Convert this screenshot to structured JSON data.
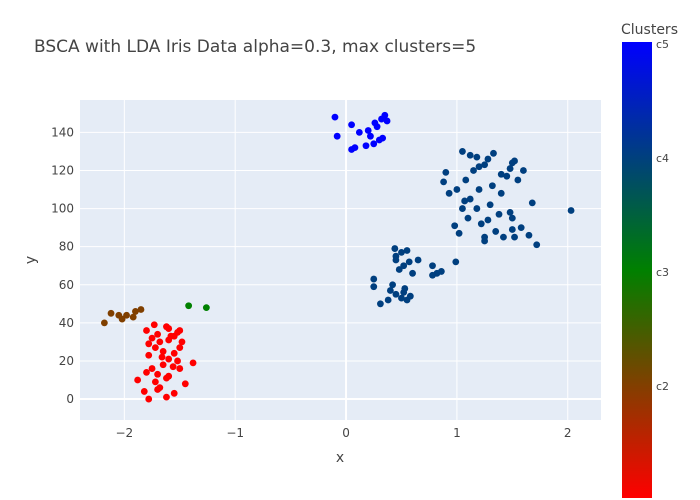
{
  "chart_data": {
    "type": "scatter",
    "title": "BSCA with LDA Iris Data alpha=0.3, max clusters=5",
    "xlabel": "x",
    "ylabel": "y",
    "xlim": [
      -2.4,
      2.3
    ],
    "ylim": [
      -11,
      157
    ],
    "x_ticks": [
      -2,
      -1,
      0,
      1,
      2
    ],
    "x_tick_labels": [
      "−2",
      "−1",
      "0",
      "1",
      "2"
    ],
    "y_ticks": [
      0,
      20,
      40,
      60,
      80,
      100,
      120,
      140
    ],
    "y_tick_labels": [
      "0",
      "20",
      "40",
      "60",
      "80",
      "100",
      "120",
      "140"
    ],
    "grid": true,
    "plot_bgcolor": "#e5ecf6",
    "colorbar": {
      "title": "Clusters",
      "tick_labels": [
        "c2",
        "c3",
        "c4",
        "c5"
      ],
      "colors": [
        "#ff0000",
        "#008000",
        "#003f7f",
        "#0000ff"
      ]
    },
    "points": [
      {
        "x": -1.62,
        "y": 1,
        "cluster": "c1"
      },
      {
        "x": -1.78,
        "y": 0,
        "cluster": "c1"
      },
      {
        "x": -1.82,
        "y": 4,
        "cluster": "c1"
      },
      {
        "x": -1.55,
        "y": 3,
        "cluster": "c1"
      },
      {
        "x": -1.45,
        "y": 8,
        "cluster": "c1"
      },
      {
        "x": -1.88,
        "y": 10,
        "cluster": "c1"
      },
      {
        "x": -1.68,
        "y": 6,
        "cluster": "c1"
      },
      {
        "x": -1.72,
        "y": 9,
        "cluster": "c1"
      },
      {
        "x": -1.62,
        "y": 11,
        "cluster": "c1"
      },
      {
        "x": -1.8,
        "y": 14,
        "cluster": "c1"
      },
      {
        "x": -1.7,
        "y": 13,
        "cluster": "c1"
      },
      {
        "x": -1.6,
        "y": 12,
        "cluster": "c1"
      },
      {
        "x": -1.5,
        "y": 16,
        "cluster": "c1"
      },
      {
        "x": -1.75,
        "y": 16,
        "cluster": "c1"
      },
      {
        "x": -1.65,
        "y": 18,
        "cluster": "c1"
      },
      {
        "x": -1.38,
        "y": 19,
        "cluster": "c1"
      },
      {
        "x": -1.52,
        "y": 20,
        "cluster": "c1"
      },
      {
        "x": -1.6,
        "y": 21,
        "cluster": "c1"
      },
      {
        "x": -1.78,
        "y": 23,
        "cluster": "c1"
      },
      {
        "x": -1.55,
        "y": 24,
        "cluster": "c1"
      },
      {
        "x": -1.65,
        "y": 25,
        "cluster": "c1"
      },
      {
        "x": -1.72,
        "y": 27,
        "cluster": "c1"
      },
      {
        "x": -1.5,
        "y": 27,
        "cluster": "c1"
      },
      {
        "x": -1.78,
        "y": 29,
        "cluster": "c1"
      },
      {
        "x": -1.68,
        "y": 30,
        "cluster": "c1"
      },
      {
        "x": -1.6,
        "y": 31,
        "cluster": "c1"
      },
      {
        "x": -1.75,
        "y": 32,
        "cluster": "c1"
      },
      {
        "x": -1.55,
        "y": 33,
        "cluster": "c1"
      },
      {
        "x": -1.7,
        "y": 34,
        "cluster": "c1"
      },
      {
        "x": -1.52,
        "y": 35,
        "cluster": "c1"
      },
      {
        "x": -1.8,
        "y": 36,
        "cluster": "c1"
      },
      {
        "x": -1.6,
        "y": 37,
        "cluster": "c1"
      },
      {
        "x": -1.5,
        "y": 36,
        "cluster": "c1"
      },
      {
        "x": -1.73,
        "y": 39,
        "cluster": "c1"
      },
      {
        "x": -1.62,
        "y": 38,
        "cluster": "c1"
      },
      {
        "x": -1.58,
        "y": 33,
        "cluster": "c1"
      },
      {
        "x": -1.48,
        "y": 30,
        "cluster": "c1"
      },
      {
        "x": -1.66,
        "y": 22,
        "cluster": "c1"
      },
      {
        "x": -1.56,
        "y": 17,
        "cluster": "c1"
      },
      {
        "x": -1.7,
        "y": 5,
        "cluster": "c1"
      },
      {
        "x": -2.18,
        "y": 40,
        "cluster": "c2"
      },
      {
        "x": -2.12,
        "y": 45,
        "cluster": "c2"
      },
      {
        "x": -2.02,
        "y": 42,
        "cluster": "c2"
      },
      {
        "x": -2.05,
        "y": 44,
        "cluster": "c2"
      },
      {
        "x": -1.98,
        "y": 44,
        "cluster": "c2"
      },
      {
        "x": -1.92,
        "y": 43,
        "cluster": "c2"
      },
      {
        "x": -1.9,
        "y": 46,
        "cluster": "c2"
      },
      {
        "x": -1.85,
        "y": 47,
        "cluster": "c2"
      },
      {
        "x": -1.42,
        "y": 49,
        "cluster": "c3"
      },
      {
        "x": -1.26,
        "y": 48,
        "cluster": "c3"
      },
      {
        "x": 0.25,
        "y": 59,
        "cluster": "c4"
      },
      {
        "x": 0.25,
        "y": 63,
        "cluster": "c4"
      },
      {
        "x": 0.31,
        "y": 50,
        "cluster": "c4"
      },
      {
        "x": 0.38,
        "y": 52,
        "cluster": "c4"
      },
      {
        "x": 0.4,
        "y": 57,
        "cluster": "c4"
      },
      {
        "x": 0.42,
        "y": 60,
        "cluster": "c4"
      },
      {
        "x": 0.45,
        "y": 55,
        "cluster": "c4"
      },
      {
        "x": 0.5,
        "y": 53,
        "cluster": "c4"
      },
      {
        "x": 0.52,
        "y": 56,
        "cluster": "c4"
      },
      {
        "x": 0.55,
        "y": 52,
        "cluster": "c4"
      },
      {
        "x": 0.58,
        "y": 54,
        "cluster": "c4"
      },
      {
        "x": 0.53,
        "y": 58,
        "cluster": "c4"
      },
      {
        "x": 0.48,
        "y": 68,
        "cluster": "c4"
      },
      {
        "x": 0.52,
        "y": 70,
        "cluster": "c4"
      },
      {
        "x": 0.57,
        "y": 72,
        "cluster": "c4"
      },
      {
        "x": 0.45,
        "y": 75,
        "cluster": "c4"
      },
      {
        "x": 0.5,
        "y": 77,
        "cluster": "c4"
      },
      {
        "x": 0.44,
        "y": 79,
        "cluster": "c4"
      },
      {
        "x": 0.55,
        "y": 78,
        "cluster": "c4"
      },
      {
        "x": 0.6,
        "y": 66,
        "cluster": "c4"
      },
      {
        "x": 0.65,
        "y": 73,
        "cluster": "c4"
      },
      {
        "x": 0.78,
        "y": 70,
        "cluster": "c4"
      },
      {
        "x": 0.82,
        "y": 66,
        "cluster": "c4"
      },
      {
        "x": 0.86,
        "y": 67,
        "cluster": "c4"
      },
      {
        "x": 0.78,
        "y": 65,
        "cluster": "c4"
      },
      {
        "x": 0.99,
        "y": 72,
        "cluster": "c4"
      },
      {
        "x": 0.45,
        "y": 73,
        "cluster": "c4"
      },
      {
        "x": 0.93,
        "y": 108,
        "cluster": "c4"
      },
      {
        "x": 0.88,
        "y": 114,
        "cluster": "c4"
      },
      {
        "x": 0.9,
        "y": 119,
        "cluster": "c4"
      },
      {
        "x": 0.98,
        "y": 91,
        "cluster": "c4"
      },
      {
        "x": 1.02,
        "y": 87,
        "cluster": "c4"
      },
      {
        "x": 1.05,
        "y": 100,
        "cluster": "c4"
      },
      {
        "x": 1.0,
        "y": 110,
        "cluster": "c4"
      },
      {
        "x": 1.08,
        "y": 115,
        "cluster": "c4"
      },
      {
        "x": 1.1,
        "y": 95,
        "cluster": "c4"
      },
      {
        "x": 1.12,
        "y": 105,
        "cluster": "c4"
      },
      {
        "x": 1.15,
        "y": 120,
        "cluster": "c4"
      },
      {
        "x": 1.18,
        "y": 100,
        "cluster": "c4"
      },
      {
        "x": 1.2,
        "y": 110,
        "cluster": "c4"
      },
      {
        "x": 1.22,
        "y": 92,
        "cluster": "c4"
      },
      {
        "x": 1.25,
        "y": 83,
        "cluster": "c4"
      },
      {
        "x": 1.25,
        "y": 85,
        "cluster": "c4"
      },
      {
        "x": 1.28,
        "y": 94,
        "cluster": "c4"
      },
      {
        "x": 1.3,
        "y": 102,
        "cluster": "c4"
      },
      {
        "x": 1.32,
        "y": 112,
        "cluster": "c4"
      },
      {
        "x": 1.35,
        "y": 88,
        "cluster": "c4"
      },
      {
        "x": 1.38,
        "y": 97,
        "cluster": "c4"
      },
      {
        "x": 1.4,
        "y": 108,
        "cluster": "c4"
      },
      {
        "x": 1.42,
        "y": 85,
        "cluster": "c4"
      },
      {
        "x": 1.45,
        "y": 117,
        "cluster": "c4"
      },
      {
        "x": 1.48,
        "y": 98,
        "cluster": "c4"
      },
      {
        "x": 1.5,
        "y": 95,
        "cluster": "c4"
      },
      {
        "x": 1.5,
        "y": 89,
        "cluster": "c4"
      },
      {
        "x": 1.52,
        "y": 85,
        "cluster": "c4"
      },
      {
        "x": 1.55,
        "y": 115,
        "cluster": "c4"
      },
      {
        "x": 1.58,
        "y": 90,
        "cluster": "c4"
      },
      {
        "x": 1.6,
        "y": 120,
        "cluster": "c4"
      },
      {
        "x": 1.65,
        "y": 86,
        "cluster": "c4"
      },
      {
        "x": 1.68,
        "y": 103,
        "cluster": "c4"
      },
      {
        "x": 1.72,
        "y": 81,
        "cluster": "c4"
      },
      {
        "x": 2.03,
        "y": 99,
        "cluster": "c4"
      },
      {
        "x": 1.05,
        "y": 130,
        "cluster": "c4"
      },
      {
        "x": 1.12,
        "y": 128,
        "cluster": "c4"
      },
      {
        "x": 1.18,
        "y": 127,
        "cluster": "c4"
      },
      {
        "x": 1.25,
        "y": 123,
        "cluster": "c4"
      },
      {
        "x": 1.28,
        "y": 126,
        "cluster": "c4"
      },
      {
        "x": 1.33,
        "y": 129,
        "cluster": "c4"
      },
      {
        "x": 1.4,
        "y": 118,
        "cluster": "c4"
      },
      {
        "x": 1.5,
        "y": 124,
        "cluster": "c4"
      },
      {
        "x": 1.52,
        "y": 125,
        "cluster": "c4"
      },
      {
        "x": 1.48,
        "y": 121,
        "cluster": "c4"
      },
      {
        "x": 1.2,
        "y": 122,
        "cluster": "c4"
      },
      {
        "x": 1.07,
        "y": 104,
        "cluster": "c4"
      },
      {
        "x": -0.1,
        "y": 148,
        "cluster": "c5"
      },
      {
        "x": -0.08,
        "y": 138,
        "cluster": "c5"
      },
      {
        "x": 0.05,
        "y": 144,
        "cluster": "c5"
      },
      {
        "x": 0.05,
        "y": 131,
        "cluster": "c5"
      },
      {
        "x": 0.08,
        "y": 132,
        "cluster": "c5"
      },
      {
        "x": 0.12,
        "y": 140,
        "cluster": "c5"
      },
      {
        "x": 0.18,
        "y": 133,
        "cluster": "c5"
      },
      {
        "x": 0.2,
        "y": 141,
        "cluster": "c5"
      },
      {
        "x": 0.22,
        "y": 138,
        "cluster": "c5"
      },
      {
        "x": 0.25,
        "y": 134,
        "cluster": "c5"
      },
      {
        "x": 0.26,
        "y": 145,
        "cluster": "c5"
      },
      {
        "x": 0.28,
        "y": 143,
        "cluster": "c5"
      },
      {
        "x": 0.3,
        "y": 136,
        "cluster": "c5"
      },
      {
        "x": 0.32,
        "y": 147,
        "cluster": "c5"
      },
      {
        "x": 0.33,
        "y": 137,
        "cluster": "c5"
      },
      {
        "x": 0.35,
        "y": 149,
        "cluster": "c5"
      },
      {
        "x": 0.37,
        "y": 146,
        "cluster": "c5"
      }
    ]
  }
}
